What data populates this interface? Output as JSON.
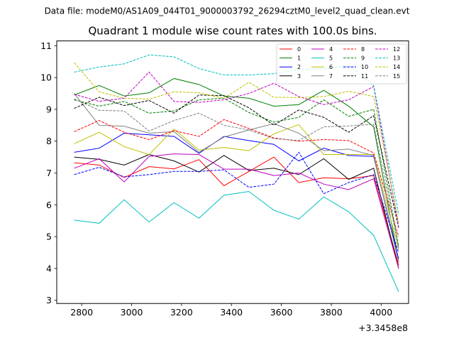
{
  "suptitle": "Data file: modeM0/AS1A09_044T01_9000003792_26294cztM0_level2_quad_clean.evt",
  "chart_data": {
    "type": "line",
    "title": "Quadrant 1 module wise count rates with 100.0s bins.",
    "xlabel": "",
    "ylabel": "",
    "x_offset_label": "+3.3458e8",
    "x": [
      2770,
      2870,
      2970,
      3070,
      3170,
      3270,
      3370,
      3470,
      3570,
      3670,
      3770,
      3870,
      3970,
      4070
    ],
    "xlim": [
      2700,
      4110
    ],
    "ylim": [
      2.9,
      11.15
    ],
    "xticks": [
      2800,
      3000,
      3200,
      3400,
      3600,
      3800,
      4000
    ],
    "yticks": [
      3,
      4,
      5,
      6,
      7,
      8,
      9,
      10,
      11
    ],
    "legend_position": "top-right",
    "series": [
      {
        "name": "0",
        "color": "#ff0000",
        "dash": "solid",
        "values": [
          7.32,
          7.25,
          6.86,
          7.2,
          7.13,
          7.42,
          6.6,
          7.05,
          7.5,
          6.7,
          6.85,
          6.82,
          6.92,
          4.1
        ]
      },
      {
        "name": "1",
        "color": "#008000",
        "dash": "solid",
        "values": [
          9.45,
          9.75,
          9.42,
          9.52,
          9.97,
          9.78,
          9.42,
          9.35,
          9.1,
          9.15,
          9.6,
          9.1,
          8.45,
          4.2
        ]
      },
      {
        "name": "2",
        "color": "#0000ff",
        "dash": "solid",
        "values": [
          7.65,
          7.78,
          8.25,
          8.2,
          8.15,
          7.62,
          8.15,
          8.02,
          7.9,
          7.38,
          7.78,
          7.55,
          7.52,
          4.3
        ]
      },
      {
        "name": "3",
        "color": "#000000",
        "dash": "solid",
        "values": [
          7.5,
          7.43,
          7.25,
          7.58,
          7.38,
          7.03,
          7.55,
          7.08,
          7.15,
          6.95,
          7.45,
          6.8,
          7.15,
          4.0
        ]
      },
      {
        "name": "4",
        "color": "#bf00bf",
        "dash": "solid",
        "values": [
          7.15,
          7.45,
          6.72,
          7.52,
          7.6,
          7.58,
          7.12,
          7.12,
          6.92,
          7.0,
          6.65,
          6.48,
          6.82,
          4.0
        ]
      },
      {
        "name": "5",
        "color": "#00bfbf",
        "dash": "solid",
        "values": [
          5.52,
          5.42,
          6.16,
          5.46,
          6.07,
          5.58,
          6.3,
          6.42,
          5.83,
          5.55,
          6.25,
          5.78,
          5.04,
          3.27
        ]
      },
      {
        "name": "6",
        "color": "#bfbf00",
        "dash": "solid",
        "values": [
          7.92,
          8.28,
          7.83,
          7.58,
          8.38,
          7.72,
          7.8,
          7.7,
          8.23,
          8.52,
          7.58,
          7.58,
          7.58,
          4.6
        ]
      },
      {
        "name": "7",
        "color": "#808080",
        "dash": "solid",
        "values": [
          9.5,
          8.5,
          8.47,
          8.25,
          8.3,
          7.65,
          8.13,
          8.35,
          8.55,
          8.25,
          7.7,
          7.75,
          7.55,
          4.2
        ]
      },
      {
        "name": "8",
        "color": "#ff0000",
        "dash": "dashed",
        "values": [
          8.3,
          8.65,
          8.28,
          8.05,
          8.33,
          8.15,
          8.68,
          8.4,
          8.1,
          8.0,
          8.05,
          8.02,
          7.63,
          5.0
        ]
      },
      {
        "name": "9",
        "color": "#008000",
        "dash": "dashed",
        "values": [
          9.3,
          9.1,
          9.25,
          8.88,
          8.95,
          9.3,
          9.35,
          8.9,
          8.6,
          8.75,
          9.3,
          8.78,
          9.0,
          4.7
        ]
      },
      {
        "name": "10",
        "color": "#0000ff",
        "dash": "dashed",
        "values": [
          6.95,
          7.18,
          6.88,
          6.95,
          7.05,
          7.05,
          7.1,
          6.55,
          6.65,
          7.65,
          6.35,
          6.7,
          6.95,
          4.5
        ]
      },
      {
        "name": "11",
        "color": "#000000",
        "dash": "dashed",
        "values": [
          9.03,
          9.38,
          9.12,
          9.28,
          8.88,
          9.45,
          9.43,
          9.05,
          8.5,
          8.98,
          8.75,
          8.28,
          8.8,
          5.28
        ]
      },
      {
        "name": "12",
        "color": "#bf00bf",
        "dash": "dashed",
        "values": [
          9.47,
          9.25,
          9.35,
          10.17,
          9.25,
          9.22,
          9.3,
          9.5,
          9.82,
          9.4,
          9.15,
          9.3,
          9.72,
          5.3
        ]
      },
      {
        "name": "13",
        "color": "#00bfbf",
        "dash": "dashed",
        "values": [
          10.17,
          10.33,
          10.43,
          10.71,
          10.65,
          10.28,
          10.08,
          10.08,
          10.12,
          10.25,
          10.27,
          10.38,
          9.75,
          5.7
        ]
      },
      {
        "name": "14",
        "color": "#bfbf00",
        "dash": "dashed",
        "values": [
          10.47,
          9.55,
          9.35,
          9.32,
          9.55,
          9.52,
          9.35,
          9.85,
          9.38,
          9.37,
          9.4,
          9.57,
          9.4,
          5.45
        ]
      },
      {
        "name": "15",
        "color": "#808080",
        "dash": "dashed",
        "values": [
          9.33,
          8.97,
          8.95,
          8.32,
          8.65,
          8.88,
          8.5,
          8.35,
          8.08,
          8.02,
          8.45,
          8.48,
          8.53,
          4.65
        ]
      }
    ]
  }
}
